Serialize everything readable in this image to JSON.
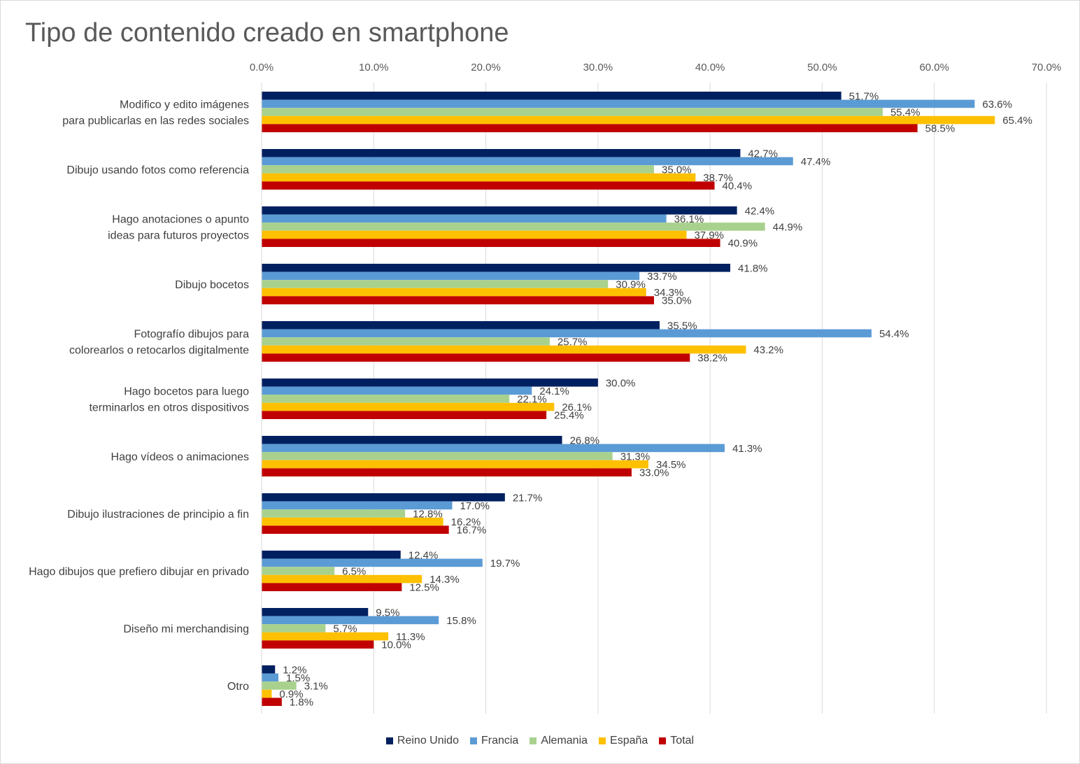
{
  "chart_data": {
    "type": "bar",
    "orientation": "horizontal",
    "title": "Tipo de contenido creado en smartphone",
    "xlabel": "",
    "ylabel": "",
    "xlim": [
      0,
      70
    ],
    "ticks": [
      "0.0%",
      "10.0%",
      "20.0%",
      "30.0%",
      "40.0%",
      "50.0%",
      "60.0%",
      "70.0%"
    ],
    "tick_values": [
      0,
      10,
      20,
      30,
      40,
      50,
      60,
      70
    ],
    "grid": true,
    "legend_position": "bottom",
    "categories": [
      [
        "Modifico y edito imágenes",
        "para publicarlas en las redes sociales"
      ],
      [
        "Dibujo usando fotos como referencia"
      ],
      [
        "Hago anotaciones o apunto",
        "ideas para futuros proyectos"
      ],
      [
        "Dibujo bocetos"
      ],
      [
        "Fotografío dibujos para",
        "colorearlos o retocarlos digitalmente"
      ],
      [
        "Hago bocetos para luego",
        "terminarlos en otros dispositivos"
      ],
      [
        "Hago vídeos o animaciones"
      ],
      [
        "Dibujo ilustraciones de principio a fin"
      ],
      [
        "Hago dibujos que prefiero dibujar en privado"
      ],
      [
        "Diseño mi merchandising"
      ],
      [
        "Otro"
      ]
    ],
    "series": [
      {
        "name": "Reino Unido",
        "color": "#002060",
        "values": [
          51.7,
          42.7,
          42.4,
          41.8,
          35.5,
          30.0,
          26.8,
          21.7,
          12.4,
          9.5,
          1.2
        ]
      },
      {
        "name": "Francia",
        "color": "#5B9BD5",
        "values": [
          63.6,
          47.4,
          36.1,
          33.7,
          54.4,
          24.1,
          41.3,
          17.0,
          19.7,
          15.8,
          1.5
        ]
      },
      {
        "name": "Alemania",
        "color": "#A9D18E",
        "values": [
          55.4,
          35.0,
          44.9,
          30.9,
          25.7,
          22.1,
          31.3,
          12.8,
          6.5,
          5.7,
          3.1
        ]
      },
      {
        "name": "España",
        "color": "#FFC000",
        "values": [
          65.4,
          38.7,
          37.9,
          34.3,
          43.2,
          26.1,
          34.5,
          16.2,
          14.3,
          11.3,
          0.9
        ]
      },
      {
        "name": "Total",
        "color": "#C00000",
        "values": [
          58.5,
          40.4,
          40.9,
          35.0,
          38.2,
          25.4,
          33.0,
          16.7,
          12.5,
          10.0,
          1.8
        ]
      }
    ]
  }
}
